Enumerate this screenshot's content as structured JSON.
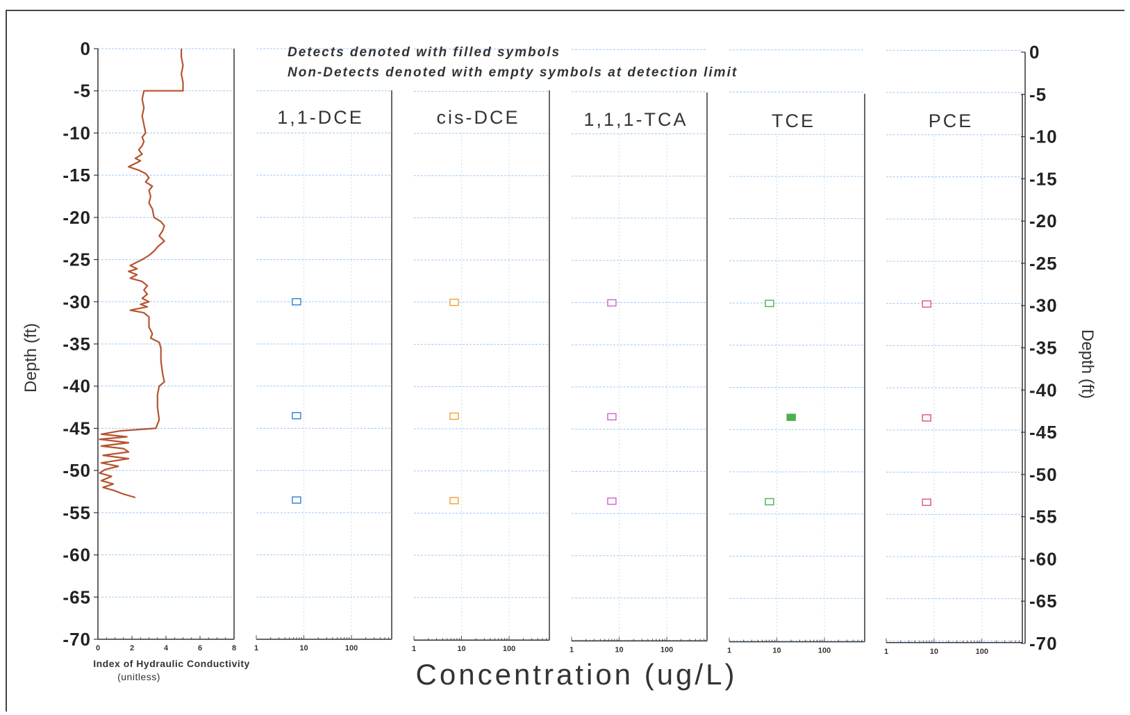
{
  "notes": {
    "line1": "Detects denoted with filled symbols",
    "line2": "Non-Detects denoted with empty symbols at detection limit"
  },
  "axis": {
    "depth_label_left": "Depth (ft)",
    "depth_label_right": "Depth (ft)",
    "concentration_label": "Concentration (ug/L)",
    "k_label": "Index of Hydraulic Conductivity",
    "k_sublabel": "(unitless)"
  },
  "chart_data": [
    {
      "type": "line",
      "xlabel": "Index of Hydraulic Conductivity",
      "ylabel": "Depth (ft)",
      "xlim": [
        0,
        8
      ],
      "ylim": [
        -70,
        0
      ],
      "x_ticks": [
        "0",
        "2",
        "4",
        "6",
        "8"
      ],
      "y_ticks": [
        "0",
        "-5",
        "-10",
        "-15",
        "-20",
        "-25",
        "-30",
        "-35",
        "-40",
        "-45",
        "-50",
        "-55",
        "-60",
        "-65",
        "-70"
      ],
      "color": "#b5532f",
      "points": [
        [
          4.9,
          0
        ],
        [
          4.9,
          -1
        ],
        [
          5.0,
          -2
        ],
        [
          4.9,
          -3
        ],
        [
          5.0,
          -4
        ],
        [
          5.0,
          -5
        ],
        [
          2.7,
          -5
        ],
        [
          2.6,
          -6
        ],
        [
          2.7,
          -7
        ],
        [
          2.6,
          -8
        ],
        [
          2.7,
          -9
        ],
        [
          2.8,
          -10
        ],
        [
          2.6,
          -10.5
        ],
        [
          2.7,
          -11
        ],
        [
          2.6,
          -11.5
        ],
        [
          2.4,
          -12
        ],
        [
          2.6,
          -12.5
        ],
        [
          2.2,
          -13
        ],
        [
          2.5,
          -13.3
        ],
        [
          1.8,
          -14
        ],
        [
          2.4,
          -14.4
        ],
        [
          2.8,
          -14.8
        ],
        [
          3.0,
          -15.3
        ],
        [
          2.8,
          -15.8
        ],
        [
          3.2,
          -16.3
        ],
        [
          3.0,
          -16.8
        ],
        [
          3.1,
          -17.5
        ],
        [
          3.0,
          -18.3
        ],
        [
          3.2,
          -19
        ],
        [
          3.3,
          -20
        ],
        [
          3.7,
          -20.5
        ],
        [
          3.9,
          -21
        ],
        [
          3.8,
          -21.6
        ],
        [
          3.6,
          -22.2
        ],
        [
          3.9,
          -22.8
        ],
        [
          3.5,
          -23.5
        ],
        [
          3.3,
          -24
        ],
        [
          3.0,
          -24.5
        ],
        [
          2.6,
          -25
        ],
        [
          2.3,
          -25.3
        ],
        [
          1.9,
          -25.7
        ],
        [
          2.3,
          -26.1
        ],
        [
          1.8,
          -26.4
        ],
        [
          2.3,
          -26.8
        ],
        [
          1.9,
          -27.2
        ],
        [
          2.6,
          -27.6
        ],
        [
          2.9,
          -28.1
        ],
        [
          2.7,
          -28.6
        ],
        [
          2.9,
          -29.1
        ],
        [
          2.6,
          -29.6
        ],
        [
          3.0,
          -30
        ],
        [
          2.5,
          -30.3
        ],
        [
          2.9,
          -30.6
        ],
        [
          1.9,
          -31
        ],
        [
          2.7,
          -31.3
        ],
        [
          3.0,
          -31.8
        ],
        [
          3.0,
          -33
        ],
        [
          3.2,
          -33.8
        ],
        [
          3.1,
          -34.3
        ],
        [
          3.6,
          -34.8
        ],
        [
          3.7,
          -35.5
        ],
        [
          3.7,
          -37
        ],
        [
          3.8,
          -38.5
        ],
        [
          3.9,
          -39.5
        ],
        [
          3.6,
          -40
        ],
        [
          3.5,
          -41
        ],
        [
          3.5,
          -42.5
        ],
        [
          3.6,
          -44
        ],
        [
          3.4,
          -45
        ],
        [
          1.3,
          -45.3
        ],
        [
          0.2,
          -45.7
        ],
        [
          1.7,
          -46
        ],
        [
          0.1,
          -46.3
        ],
        [
          1.8,
          -46.7
        ],
        [
          0.2,
          -47.1
        ],
        [
          1.5,
          -47.4
        ],
        [
          1.8,
          -47.8
        ],
        [
          0.3,
          -48.2
        ],
        [
          1.8,
          -48.6
        ],
        [
          0.2,
          -49.1
        ],
        [
          1.2,
          -49.5
        ],
        [
          0.4,
          -49.9
        ],
        [
          0.1,
          -50.3
        ],
        [
          0.8,
          -50.7
        ],
        [
          0.2,
          -51.2
        ],
        [
          0.9,
          -51.6
        ],
        [
          0.3,
          -52
        ],
        [
          1.0,
          -52.4
        ],
        [
          1.5,
          -52.8
        ],
        [
          2.2,
          -53.2
        ]
      ]
    },
    {
      "type": "scatter",
      "title": "1,1-DCE",
      "x_scale": "log",
      "xlim": [
        1,
        700
      ],
      "x_ticks": [
        "1",
        "10",
        "100"
      ],
      "color": "#2f7fd0",
      "points": [
        {
          "x": 7,
          "y": -30,
          "detect": false
        },
        {
          "x": 7,
          "y": -43.5,
          "detect": false
        },
        {
          "x": 7,
          "y": -53.5,
          "detect": false
        }
      ]
    },
    {
      "type": "scatter",
      "title": "cis-DCE",
      "x_scale": "log",
      "xlim": [
        1,
        700
      ],
      "x_ticks": [
        "1",
        "10",
        "100"
      ],
      "color": "#f0a030",
      "points": [
        {
          "x": 7,
          "y": -30,
          "detect": false
        },
        {
          "x": 7,
          "y": -43.5,
          "detect": false
        },
        {
          "x": 7,
          "y": -53.5,
          "detect": false
        }
      ]
    },
    {
      "type": "scatter",
      "title": "1,1,1-TCA",
      "x_scale": "log",
      "xlim": [
        1,
        700
      ],
      "x_ticks": [
        "1",
        "10",
        "100"
      ],
      "color": "#d060d0",
      "points": [
        {
          "x": 7,
          "y": -30,
          "detect": false
        },
        {
          "x": 7,
          "y": -43.5,
          "detect": false
        },
        {
          "x": 7,
          "y": -53.5,
          "detect": false
        }
      ]
    },
    {
      "type": "scatter",
      "title": "TCE",
      "x_scale": "log",
      "xlim": [
        1,
        700
      ],
      "x_ticks": [
        "1",
        "10",
        "100"
      ],
      "color": "#4caf50",
      "points": [
        {
          "x": 7,
          "y": -30,
          "detect": false
        },
        {
          "x": 20,
          "y": -43.5,
          "detect": true
        },
        {
          "x": 7,
          "y": -53.5,
          "detect": false
        }
      ]
    },
    {
      "type": "scatter",
      "title": "PCE",
      "x_scale": "log",
      "xlim": [
        1,
        700
      ],
      "x_ticks": [
        "1",
        "10",
        "100"
      ],
      "color": "#e05070",
      "points": [
        {
          "x": 7,
          "y": -30,
          "detect": false
        },
        {
          "x": 7,
          "y": -43.5,
          "detect": false
        },
        {
          "x": 7,
          "y": -53.5,
          "detect": false
        }
      ]
    }
  ]
}
